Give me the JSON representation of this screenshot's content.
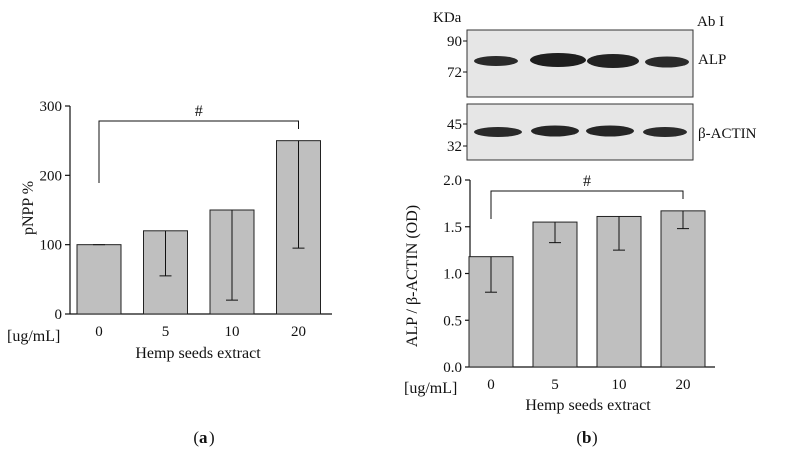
{
  "panel_a_label": "a",
  "panel_b_label": "b",
  "blot": {
    "unit_label": "KDa",
    "antibody_label": "Ab I",
    "top_markers": [
      "90",
      "72"
    ],
    "top_band_label": "ALP",
    "bottom_markers": [
      "45",
      "32"
    ],
    "bottom_band_label": "β-ACTIN",
    "band_color": "#262626",
    "membrane_color": "#e6e6e6"
  },
  "chart_data": [
    {
      "type": "bar",
      "panel": "a",
      "categories": [
        "0",
        "5",
        "10",
        "20"
      ],
      "values": [
        100,
        120,
        150,
        250
      ],
      "errors": [
        [
          100,
          100
        ],
        [
          55,
          120
        ],
        [
          20,
          150
        ],
        [
          95,
          250
        ]
      ],
      "ylabel": "pNPP %",
      "xlabel": "Hemp seeds extract",
      "x_unit_label": "[ug/mL]",
      "ylim": [
        0,
        300
      ],
      "yticks": [
        "0",
        "100",
        "200",
        "300"
      ],
      "significance": {
        "from": "0",
        "to": "20",
        "symbol": "#"
      },
      "bar_color": "#bfbfbf",
      "grid": false
    },
    {
      "type": "bar",
      "panel": "b",
      "categories": [
        "0",
        "5",
        "10",
        "20"
      ],
      "values": [
        1.18,
        1.55,
        1.61,
        1.67
      ],
      "errors": [
        [
          0.8,
          1.18
        ],
        [
          1.33,
          1.55
        ],
        [
          1.25,
          1.61
        ],
        [
          1.48,
          1.67
        ]
      ],
      "ylabel": "ALP / β-ACTIN (OD)",
      "xlabel": "Hemp seeds extract",
      "x_unit_label": "[ug/mL]",
      "ylim": [
        0,
        2.0
      ],
      "yticks": [
        "0.0",
        "0.5",
        "1.0",
        "1.5",
        "2.0"
      ],
      "significance": {
        "from": "0",
        "to": "20",
        "symbol": "#"
      },
      "bar_color": "#bfbfbf",
      "grid": false
    }
  ]
}
